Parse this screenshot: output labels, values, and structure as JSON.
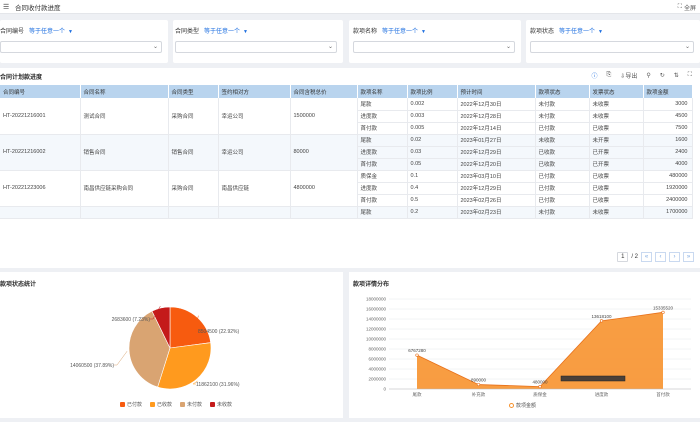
{
  "window": {
    "title": "合同收付款进度",
    "fullscreen_label": "全屏"
  },
  "filters": [
    {
      "label": "合同编号",
      "operator": "等于任意一个"
    },
    {
      "label": "合同类型",
      "operator": "等于任意一个"
    },
    {
      "label": "款项名称",
      "operator": "等于任意一个"
    },
    {
      "label": "款项状态",
      "operator": "等于任意一个"
    }
  ],
  "table_card": {
    "title": "合同计划款进度",
    "export_label": "导出",
    "columns": [
      "合同编号",
      "合同名称",
      "合同类型",
      "签约相对方",
      "合同含税总价",
      "款项名称",
      "款项比例",
      "预计时间",
      "款项状态",
      "发票状态",
      "款项金额"
    ],
    "groups": [
      {
        "contract_no": "HT-20221216001",
        "contract_name": "测试合同",
        "contract_type": "采购合同",
        "party": "幸运公司",
        "total": "1500000",
        "rows": [
          {
            "item": "尾款",
            "ratio": "0.002",
            "date": "2022年12月30日",
            "status": "未付款",
            "invoice": "未收票",
            "amount": "3000"
          },
          {
            "item": "进度款",
            "ratio": "0.003",
            "date": "2022年12月28日",
            "status": "未付款",
            "invoice": "未收票",
            "amount": "4500"
          },
          {
            "item": "首付款",
            "ratio": "0.005",
            "date": "2022年12月14日",
            "status": "已付款",
            "invoice": "已收票",
            "amount": "7500"
          }
        ]
      },
      {
        "contract_no": "HT-20221216002",
        "contract_name": "销售合同",
        "contract_type": "销售合同",
        "party": "幸运公司",
        "total": "80000",
        "rows": [
          {
            "item": "尾款",
            "ratio": "0.02",
            "date": "2023年01月27日",
            "status": "未收款",
            "invoice": "未开票",
            "amount": "1600"
          },
          {
            "item": "进度款",
            "ratio": "0.03",
            "date": "2022年12月29日",
            "status": "已收款",
            "invoice": "已开票",
            "amount": "2400"
          },
          {
            "item": "首付款",
            "ratio": "0.05",
            "date": "2022年12月20日",
            "status": "已收款",
            "invoice": "已开票",
            "amount": "4000"
          }
        ]
      },
      {
        "contract_no": "HT-20221223006",
        "contract_name": "南昌供应链采购合同",
        "contract_type": "采购合同",
        "party": "南昌供应链",
        "total": "4800000",
        "rows": [
          {
            "item": "质保金",
            "ratio": "0.1",
            "date": "2023年03月10日",
            "status": "已付款",
            "invoice": "已收票",
            "amount": "480000"
          },
          {
            "item": "进度款",
            "ratio": "0.4",
            "date": "2022年12月29日",
            "status": "已付款",
            "invoice": "已收票",
            "amount": "1920000"
          },
          {
            "item": "首付款",
            "ratio": "0.5",
            "date": "2023年02月26日",
            "status": "已付款",
            "invoice": "已收票",
            "amount": "2400000"
          }
        ]
      },
      {
        "contract_no": "",
        "contract_name": "",
        "contract_type": "",
        "party": "",
        "total": "",
        "rows": [
          {
            "item": "尾款",
            "ratio": "0.2",
            "date": "2023年02月23日",
            "status": "未付款",
            "invoice": "未收票",
            "amount": "1700000"
          }
        ]
      }
    ],
    "pagination": {
      "current": "1",
      "total_text": "/ 2"
    }
  },
  "pie_card": {
    "title": "款项状态统计",
    "chart_data": {
      "type": "pie",
      "slices": [
        {
          "name": "已付款",
          "value": 8504500,
          "label": "8504500 (22.92%)",
          "color": "#f75b0f"
        },
        {
          "name": "已收款",
          "value": 11862100,
          "label": "11862100 (31.96%)",
          "color": "#ff9a1e"
        },
        {
          "name": "未付款",
          "value": 14060500,
          "label": "14060500 (37.89%)",
          "color": "#d9a472"
        },
        {
          "name": "未收款",
          "value": 2683600,
          "label": "2683600 (7.23%)",
          "color": "#c41a1a"
        }
      ]
    }
  },
  "area_card": {
    "title": "款项详情分布",
    "chart_data": {
      "type": "area",
      "categories": [
        "尾款",
        "补充款",
        "质保金",
        "进度款",
        "首付款"
      ],
      "series": [
        {
          "name": "款项金额",
          "values": [
            6767280,
            890000,
            480000,
            13618100,
            15335520
          ],
          "color": "#f7922d"
        }
      ],
      "data_labels": [
        "6767280",
        "890000",
        "480000",
        "13618100",
        "15335520"
      ],
      "yticks": [
        "18000000",
        "16000000",
        "14000000",
        "12000000",
        "10000000",
        "8000000",
        "6000000",
        "4000000",
        "2000000",
        "0"
      ],
      "ylim": [
        0,
        18000000
      ]
    }
  }
}
